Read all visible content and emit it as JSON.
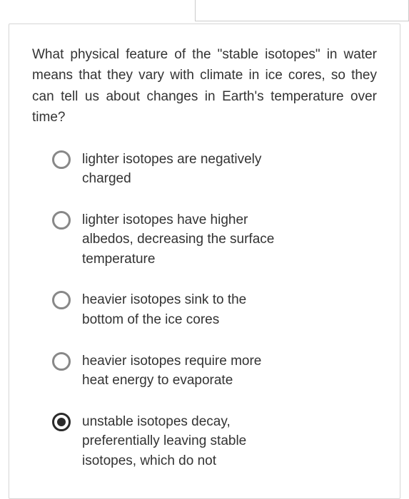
{
  "question": {
    "text": "What physical feature of the \"stable isotopes\" in water means that they vary with climate in ice cores, so they can tell us about changes in Earth's temperature over time?"
  },
  "options": [
    {
      "label": "lighter isotopes are negatively charged",
      "selected": false
    },
    {
      "label": "lighter isotopes have higher albedos, decreasing the surface temperature",
      "selected": false
    },
    {
      "label": "heavier isotopes sink to the bottom of the ice cores",
      "selected": false
    },
    {
      "label": "heavier isotopes require more heat energy to evaporate",
      "selected": false
    },
    {
      "label": "unstable isotopes decay, preferentially leaving stable isotopes, which do not",
      "selected": true
    }
  ],
  "colors": {
    "border": "#d8d8d8",
    "text": "#333333",
    "radio_unselected": "#888888",
    "radio_selected": "#2a2a2a",
    "background": "#ffffff"
  }
}
